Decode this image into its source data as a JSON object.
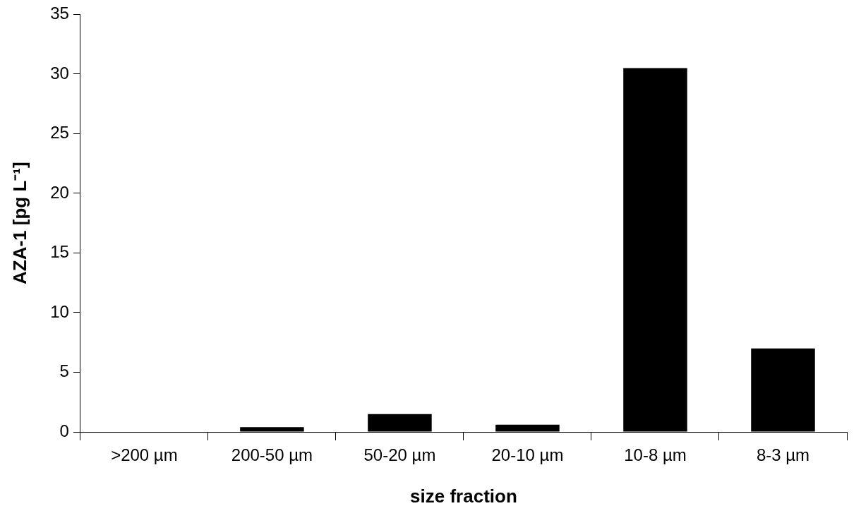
{
  "chart_data": {
    "type": "bar",
    "xlabel": "size fraction",
    "ylabel": "AZA-1 [pg L⁻¹]",
    "categories": [
      ">200 µm",
      "200-50 µm",
      "50-20 µm",
      "20-10 µm",
      "10-8 µm",
      "8-3 µm"
    ],
    "values": [
      0,
      0.4,
      1.5,
      0.6,
      30.5,
      7.0
    ],
    "color": "#000000",
    "ylim": [
      0,
      35
    ],
    "yticks": [
      0,
      5,
      10,
      15,
      20,
      25,
      30,
      35
    ],
    "grid": false,
    "legend": false
  }
}
